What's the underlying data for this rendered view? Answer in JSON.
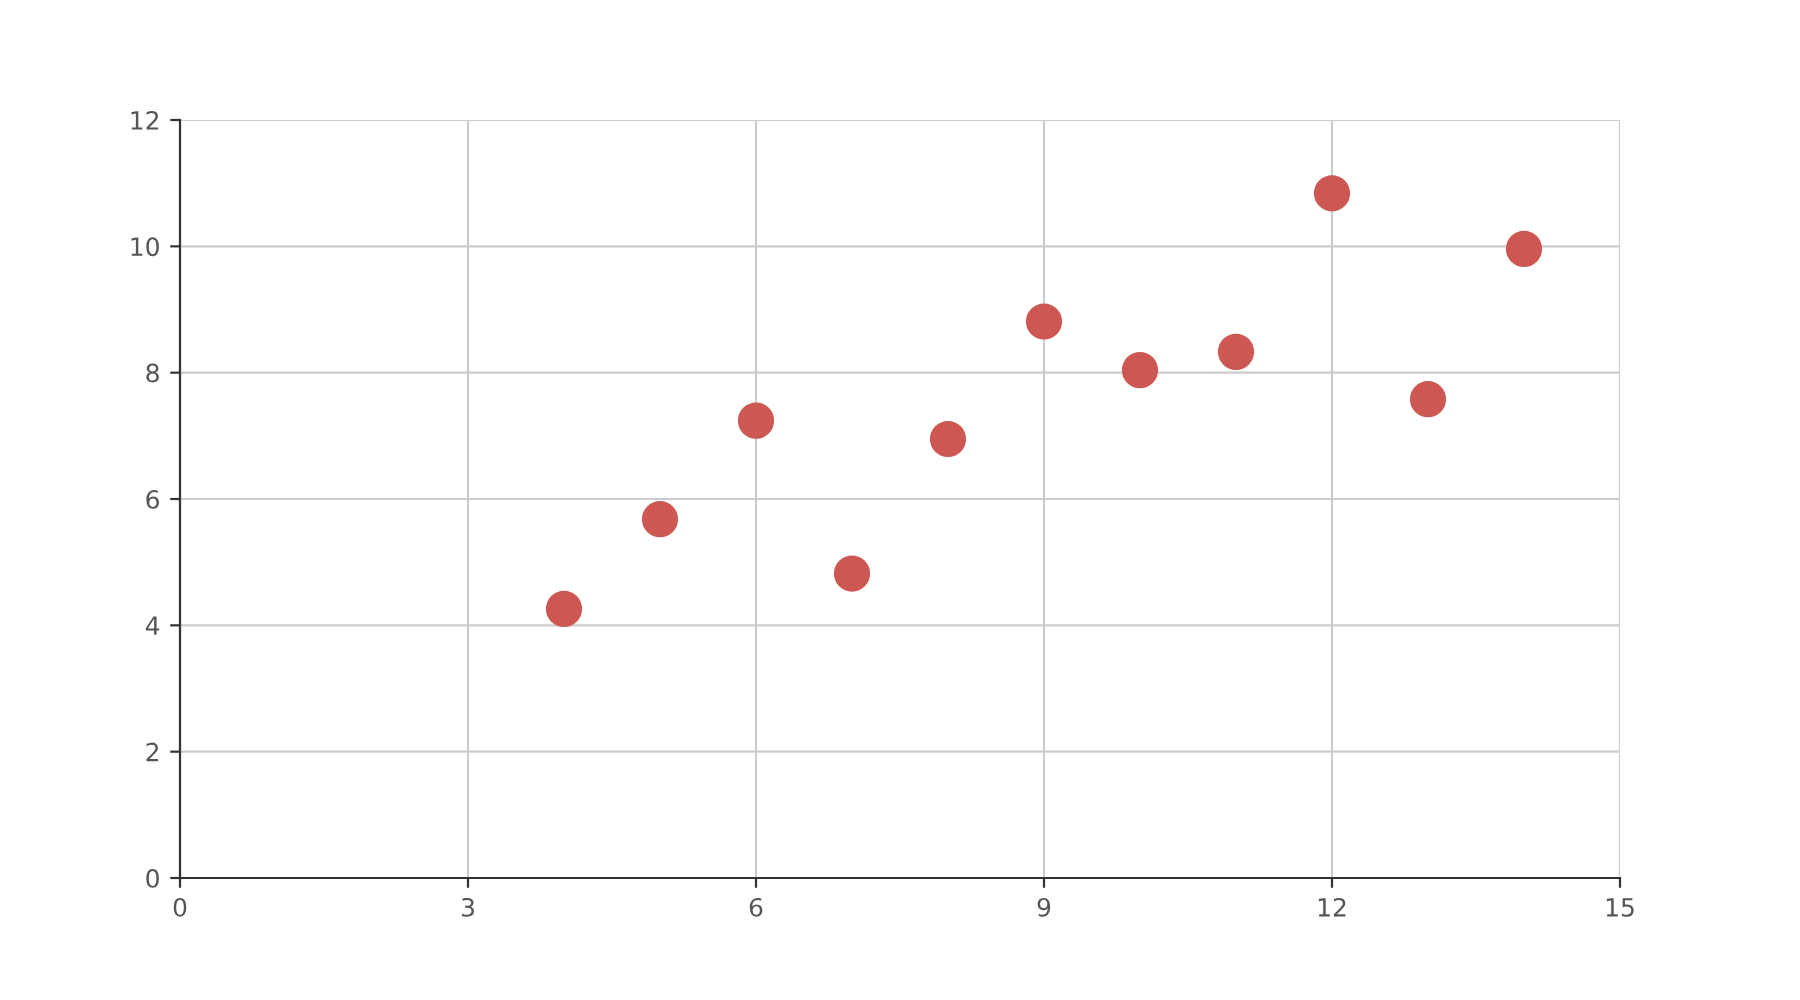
{
  "chart_data": {
    "type": "scatter",
    "x": [
      10,
      8,
      13,
      9,
      11,
      14,
      6,
      4,
      12,
      7,
      5
    ],
    "series": [
      {
        "color": "#cd5753",
        "values": [
          8.04,
          6.95,
          7.58,
          8.81,
          8.33,
          9.96,
          7.24,
          4.26,
          10.84,
          4.82,
          5.68
        ]
      }
    ],
    "xlim": [
      0,
      15
    ],
    "xticks": [
      0,
      3,
      6,
      9,
      12,
      15
    ],
    "ylim": [
      0,
      12
    ],
    "yticks": [
      0,
      2,
      4,
      6,
      8,
      10,
      12
    ],
    "grid": true,
    "marker": "circle"
  }
}
